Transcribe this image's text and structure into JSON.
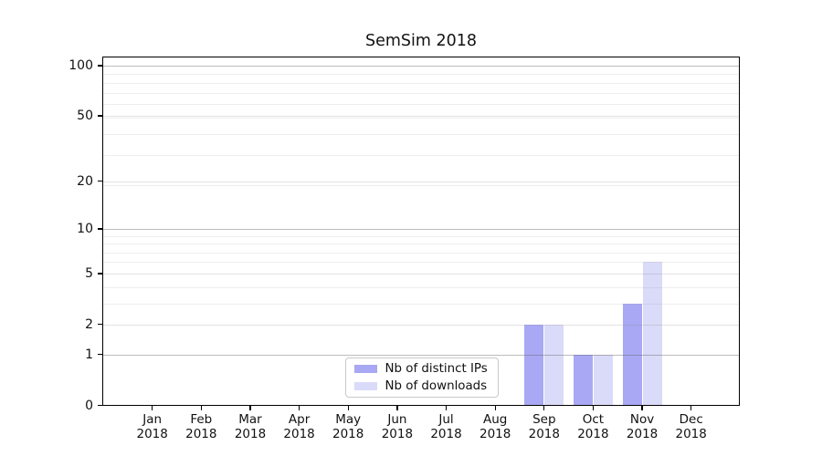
{
  "title": "SemSim 2018",
  "chart_data": {
    "type": "bar",
    "title": "SemSim 2018",
    "categories": [
      "Jan 2018",
      "Feb 2018",
      "Mar 2018",
      "Apr 2018",
      "May 2018",
      "Jun 2018",
      "Jul 2018",
      "Aug 2018",
      "Sep 2018",
      "Oct 2018",
      "Nov 2018",
      "Dec 2018"
    ],
    "series": [
      {
        "name": "Nb of distinct IPs",
        "color": "#a8a8f4",
        "values": [
          0,
          0,
          0,
          0,
          0,
          0,
          0,
          0,
          2,
          1,
          3,
          0
        ]
      },
      {
        "name": "Nb of downloads",
        "color": "#dadaf9",
        "values": [
          0,
          0,
          0,
          0,
          0,
          0,
          0,
          0,
          2,
          1,
          6,
          0
        ]
      }
    ],
    "xlabel": "",
    "ylabel": "",
    "yscale": "log10(value+1)",
    "ylim": [
      0,
      114
    ],
    "yticks": [
      0,
      1,
      2,
      5,
      10,
      20,
      50,
      100
    ],
    "gridlines": {
      "emphasis_values": [
        1,
        10,
        100
      ],
      "major_values": [
        2,
        5,
        20,
        50
      ],
      "minor_values": [
        3,
        4,
        6,
        7,
        8,
        9,
        19,
        29,
        39,
        49,
        59,
        69,
        79,
        89
      ]
    },
    "grid": "on",
    "legend_position": "inside lower-center"
  },
  "legend": {
    "items": [
      {
        "label": "Nb of distinct IPs",
        "color": "#a8a8f4"
      },
      {
        "label": "Nb of downloads",
        "color": "#dadaf9"
      }
    ]
  },
  "colors": {
    "background": "#ffffff",
    "spine": "#000000",
    "text": "#111111",
    "bar_dark": "#a8a8f4",
    "bar_light": "#dadaf9",
    "grid_emphasis": "rgba(100,100,100,0.43)",
    "grid_major": "rgba(140,140,140,0.25)",
    "grid_minor": "rgba(160,160,160,0.19)",
    "legend_border": "#c9c9c9"
  }
}
